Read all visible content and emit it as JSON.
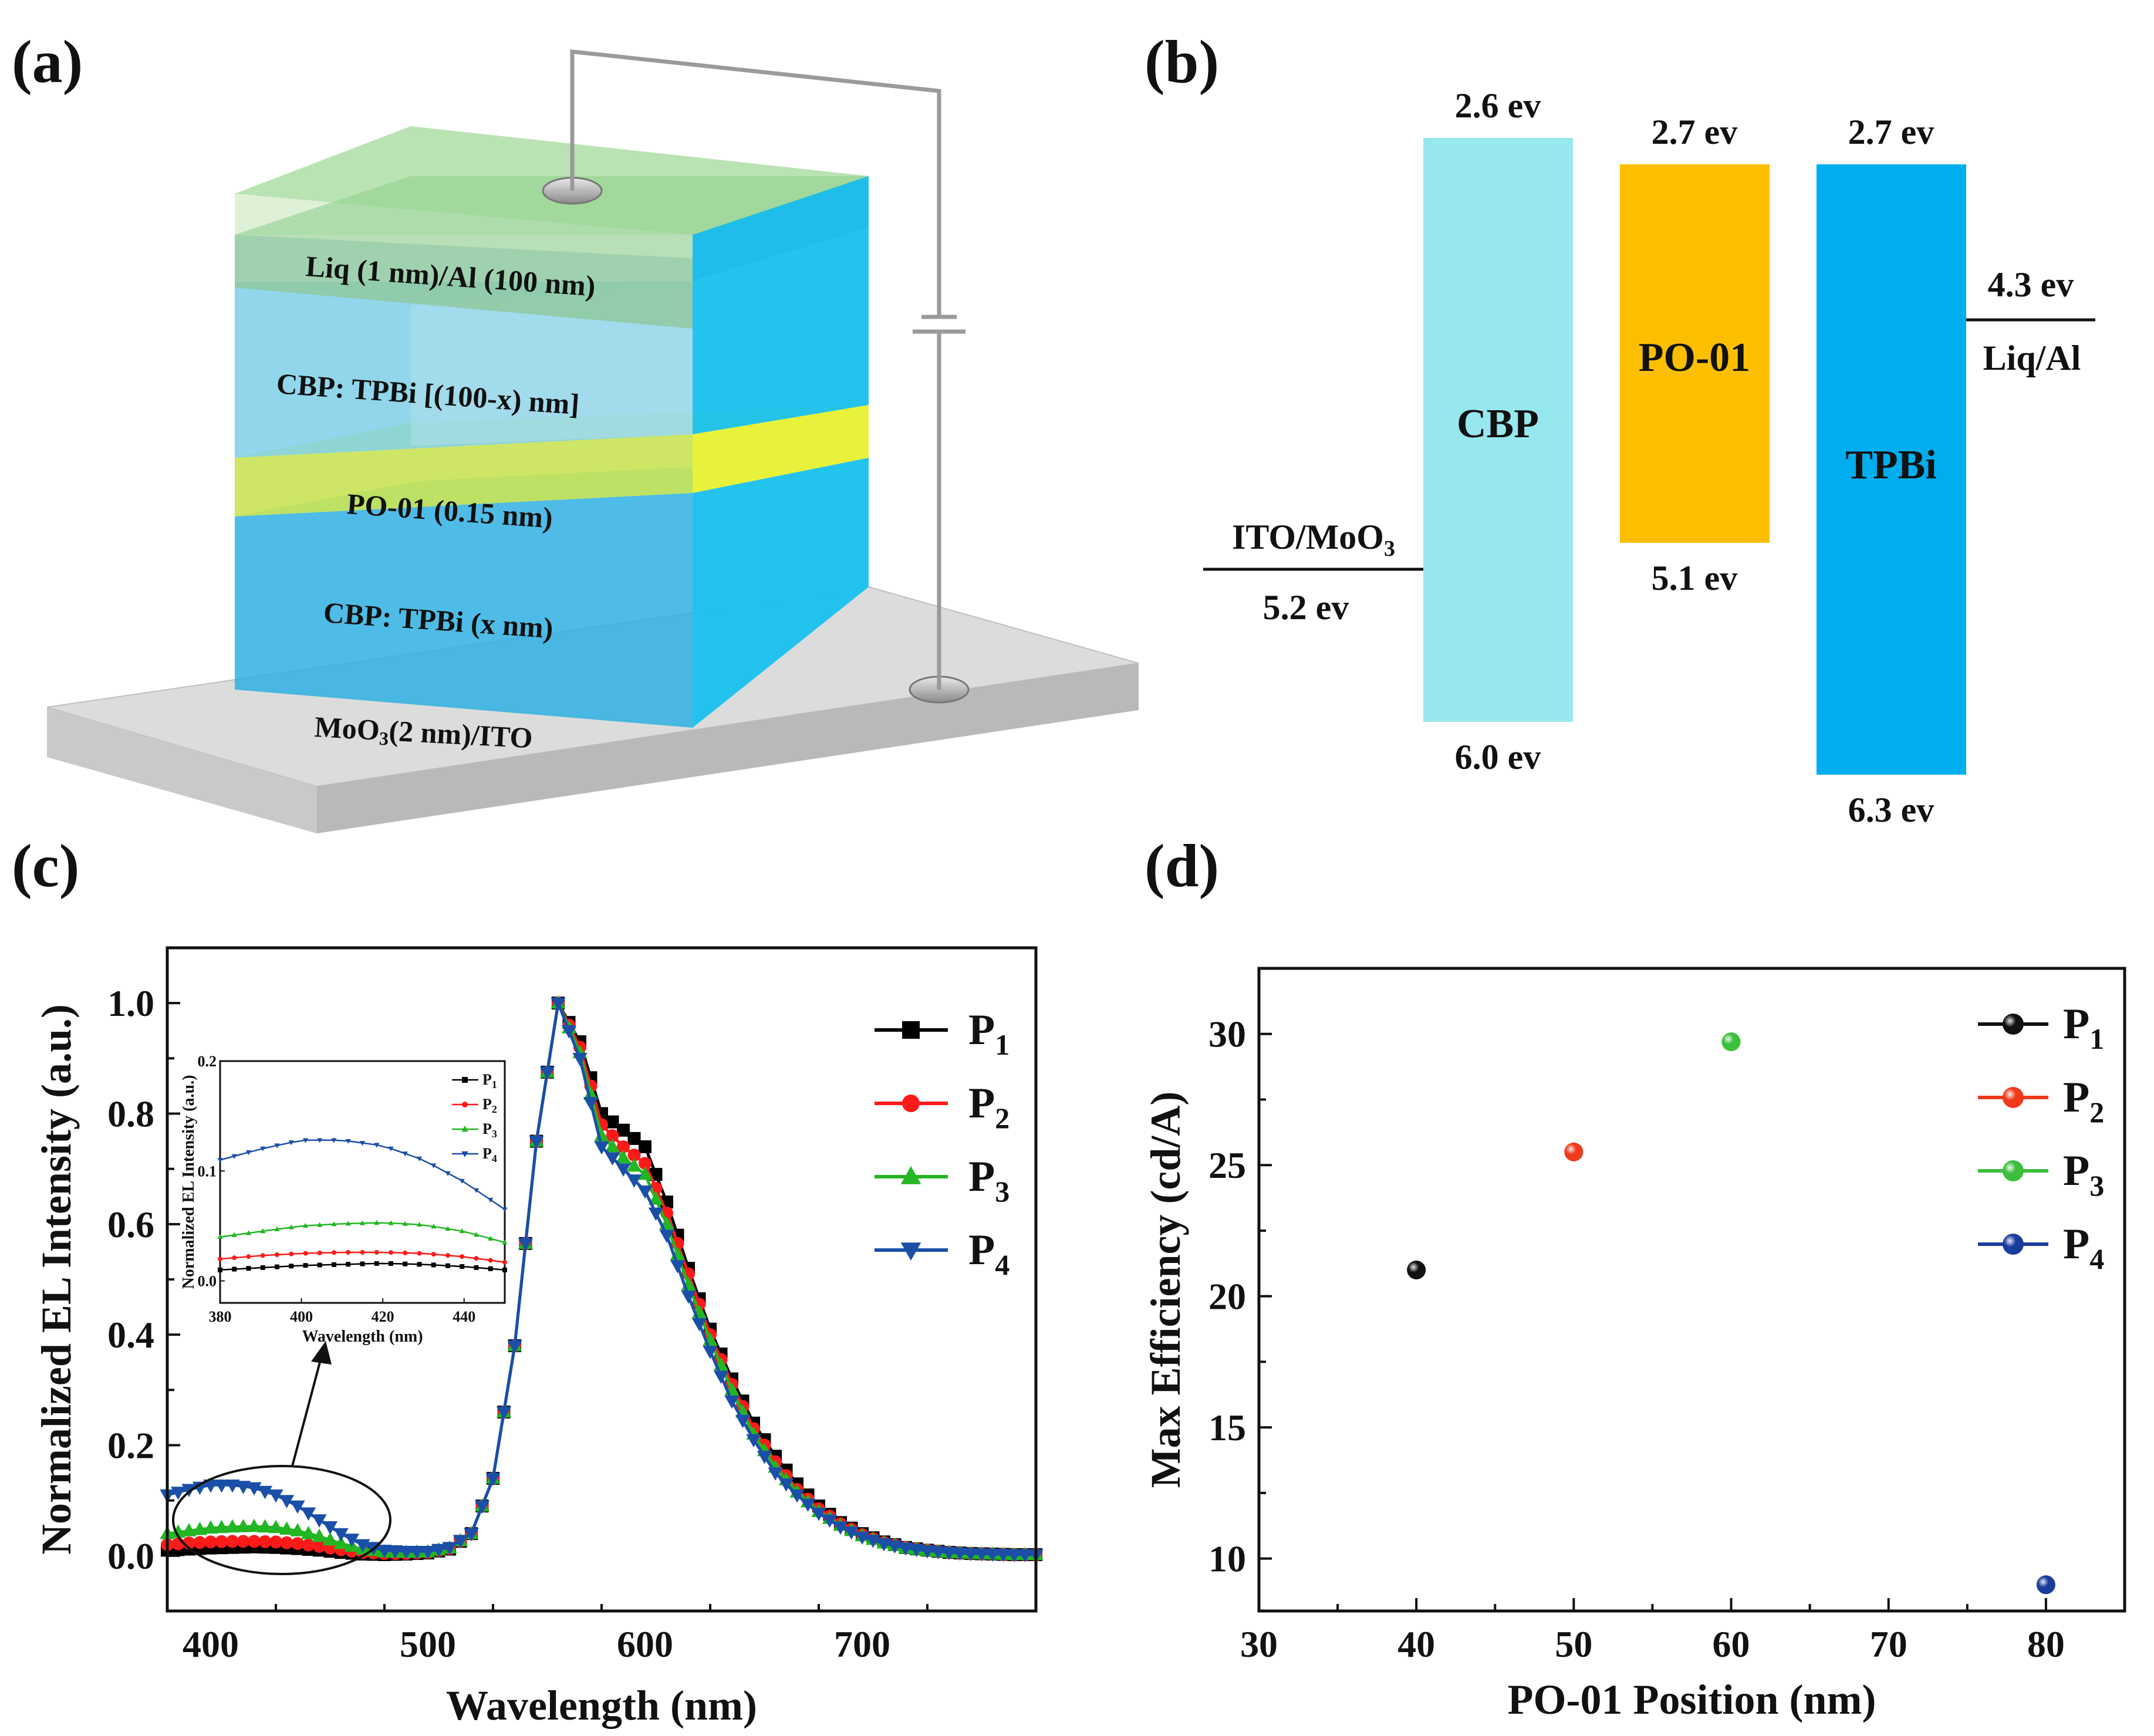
{
  "panels": {
    "a": {
      "label": "(a)",
      "layers": [
        {
          "name": "Liq (1 nm)/Al (100 nm)",
          "color": "#8fd08a"
        },
        {
          "name": "CBP: TPBi [(100-x) nm]",
          "color": "#29c4ee"
        },
        {
          "name": "PO-01 (0.15 nm)",
          "color": "#eaf03a"
        },
        {
          "name": "CBP: TPBi (x nm)",
          "color": "#1fb7ea"
        },
        {
          "name_prefix": "MoO",
          "name_sub": "3",
          "name_suffix": "(2 nm)/ITO",
          "color": "#d0d0d0"
        }
      ]
    },
    "b": {
      "label": "(b)",
      "materials": [
        {
          "name": "CBP",
          "lumo": "2.6 ev",
          "homo": "6.0 ev",
          "color": "#97e7ee"
        },
        {
          "name": "PO-01",
          "lumo": "2.7 ev",
          "homo": "5.1 ev",
          "color": "#fbbf00"
        },
        {
          "name": "TPBi",
          "lumo": "2.7 ev",
          "homo": "6.3 ev",
          "color": "#00adef"
        }
      ],
      "anode": {
        "name_prefix": "ITO/MoO",
        "name_sub": "3",
        "level": "5.2 ev"
      },
      "cathode": {
        "name": "Liq/Al",
        "level": "4.3 ev"
      }
    },
    "c": {
      "label": "(c)"
    },
    "d": {
      "label": "(d)"
    }
  },
  "chart_data": [
    {
      "type": "line",
      "title": "",
      "xlabel": "Wavelength (nm)",
      "ylabel": "Normalized EL Intensity (a.u.)",
      "xlim": [
        380,
        780
      ],
      "ylim": [
        -0.1,
        1.1
      ],
      "xticks": [
        400,
        500,
        600,
        700
      ],
      "yticks": [
        "0.0",
        "0.2",
        "0.4",
        "0.6",
        "0.8",
        "1.0"
      ],
      "legend_position": "top-right",
      "x": [
        380,
        390,
        400,
        410,
        420,
        430,
        440,
        450,
        460,
        470,
        480,
        490,
        500,
        510,
        520,
        530,
        540,
        550,
        560,
        570,
        580,
        590,
        600,
        610,
        620,
        630,
        640,
        650,
        660,
        670,
        680,
        690,
        700,
        710,
        720,
        730,
        740,
        750,
        760,
        770,
        780
      ],
      "series": [
        {
          "name": "P",
          "sub": "1",
          "color": "#000000",
          "marker": "square",
          "values": [
            0.01,
            0.012,
            0.014,
            0.015,
            0.016,
            0.015,
            0.013,
            0.01,
            0.006,
            0.003,
            0.002,
            0.003,
            0.005,
            0.012,
            0.04,
            0.14,
            0.38,
            0.75,
            1.0,
            0.93,
            0.8,
            0.77,
            0.74,
            0.64,
            0.52,
            0.41,
            0.32,
            0.24,
            0.18,
            0.13,
            0.09,
            0.06,
            0.04,
            0.025,
            0.015,
            0.01,
            0.006,
            0.004,
            0.003,
            0.002,
            0.002
          ]
        },
        {
          "name": "P",
          "sub": "2",
          "color": "#ff1a1a",
          "marker": "circle",
          "values": [
            0.02,
            0.023,
            0.025,
            0.026,
            0.026,
            0.025,
            0.022,
            0.017,
            0.011,
            0.006,
            0.004,
            0.004,
            0.006,
            0.013,
            0.04,
            0.14,
            0.38,
            0.75,
            1.0,
            0.92,
            0.78,
            0.74,
            0.71,
            0.62,
            0.51,
            0.4,
            0.31,
            0.23,
            0.17,
            0.12,
            0.085,
            0.058,
            0.038,
            0.024,
            0.015,
            0.01,
            0.006,
            0.004,
            0.003,
            0.002,
            0.002
          ]
        },
        {
          "name": "P",
          "sub": "3",
          "color": "#22b622",
          "marker": "triangle",
          "values": [
            0.04,
            0.045,
            0.05,
            0.052,
            0.053,
            0.051,
            0.045,
            0.035,
            0.022,
            0.012,
            0.007,
            0.006,
            0.007,
            0.014,
            0.04,
            0.14,
            0.38,
            0.75,
            1.0,
            0.91,
            0.76,
            0.72,
            0.69,
            0.6,
            0.49,
            0.39,
            0.3,
            0.22,
            0.16,
            0.115,
            0.08,
            0.055,
            0.036,
            0.023,
            0.014,
            0.009,
            0.006,
            0.004,
            0.003,
            0.002,
            0.002
          ]
        },
        {
          "name": "P",
          "sub": "4",
          "color": "#1a4fa8",
          "marker": "triangle-down",
          "values": [
            0.11,
            0.12,
            0.128,
            0.128,
            0.123,
            0.11,
            0.09,
            0.065,
            0.04,
            0.02,
            0.01,
            0.008,
            0.008,
            0.015,
            0.04,
            0.14,
            0.38,
            0.75,
            1.0,
            0.9,
            0.74,
            0.7,
            0.66,
            0.58,
            0.47,
            0.37,
            0.28,
            0.21,
            0.15,
            0.11,
            0.077,
            0.052,
            0.034,
            0.022,
            0.014,
            0.009,
            0.006,
            0.004,
            0.003,
            0.002,
            0.002
          ]
        }
      ],
      "inset": {
        "xlabel": "Wavelength (nm)",
        "ylabel": "Normalized EL Intensity (a.u.)",
        "xlim": [
          380,
          450
        ],
        "ylim": [
          -0.02,
          0.2
        ],
        "xticks": [
          380,
          400,
          420,
          440
        ],
        "yticks": [
          "0.0",
          "0.1",
          "0.2"
        ]
      }
    },
    {
      "type": "scatter",
      "title": "",
      "xlabel": "PO-01 Position (nm)",
      "ylabel": "Max Efficiency (cd/A)",
      "xlim": [
        30,
        85
      ],
      "ylim": [
        8,
        32.5
      ],
      "xticks": [
        30,
        40,
        50,
        60,
        70,
        80
      ],
      "yticks": [
        10,
        15,
        20,
        25,
        30
      ],
      "legend_position": "top-right",
      "series": [
        {
          "name": "P",
          "sub": "1",
          "color": "#111111",
          "x": 40,
          "y": 21.0
        },
        {
          "name": "P",
          "sub": "2",
          "color": "#f03a1c",
          "x": 50,
          "y": 25.5
        },
        {
          "name": "P",
          "sub": "3",
          "color": "#3cbf3c",
          "x": 60,
          "y": 29.7
        },
        {
          "name": "P",
          "sub": "4",
          "color": "#1a3d9c",
          "x": 80,
          "y": 9.0
        }
      ]
    }
  ]
}
